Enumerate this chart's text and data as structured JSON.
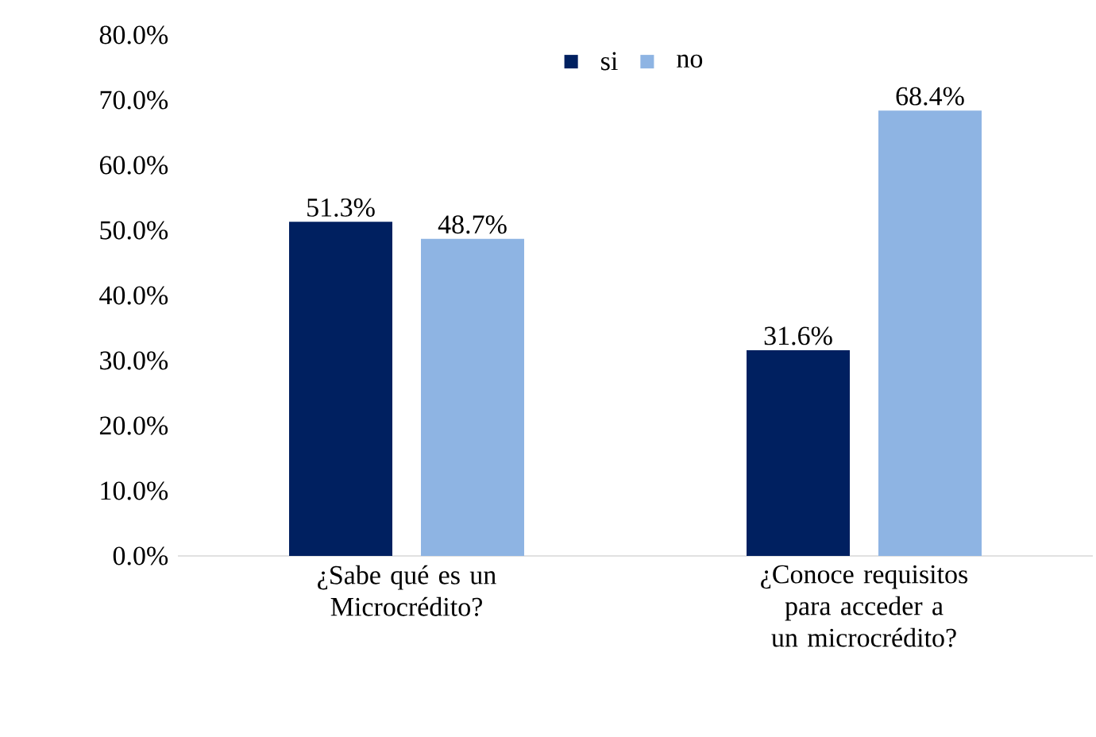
{
  "chart_data": {
    "type": "bar",
    "categories": [
      "¿Sabe qué es un Microcrédito?",
      "¿Conoce requisitos para acceder a un microcrédito?"
    ],
    "series": [
      {
        "name": "si",
        "color": "#002060",
        "values": [
          51.3,
          31.6
        ],
        "value_labels": [
          "51.3%",
          "31.6%"
        ]
      },
      {
        "name": "no",
        "color": "#8eb4e3",
        "values": [
          48.7,
          68.4
        ],
        "value_labels": [
          "48.7%",
          "68.4%"
        ]
      }
    ],
    "ylim": [
      0,
      80
    ],
    "yticks": [
      {
        "value": 0,
        "label": "0.0%"
      },
      {
        "value": 10,
        "label": "10.0%"
      },
      {
        "value": 20,
        "label": "20.0%"
      },
      {
        "value": 30,
        "label": "30.0%"
      },
      {
        "value": 40,
        "label": "40.0%"
      },
      {
        "value": 50,
        "label": "50.0%"
      },
      {
        "value": 60,
        "label": "60.0%"
      },
      {
        "value": 70,
        "label": "70.0%"
      },
      {
        "value": 80,
        "label": "80.0%"
      }
    ],
    "legend": "top"
  }
}
